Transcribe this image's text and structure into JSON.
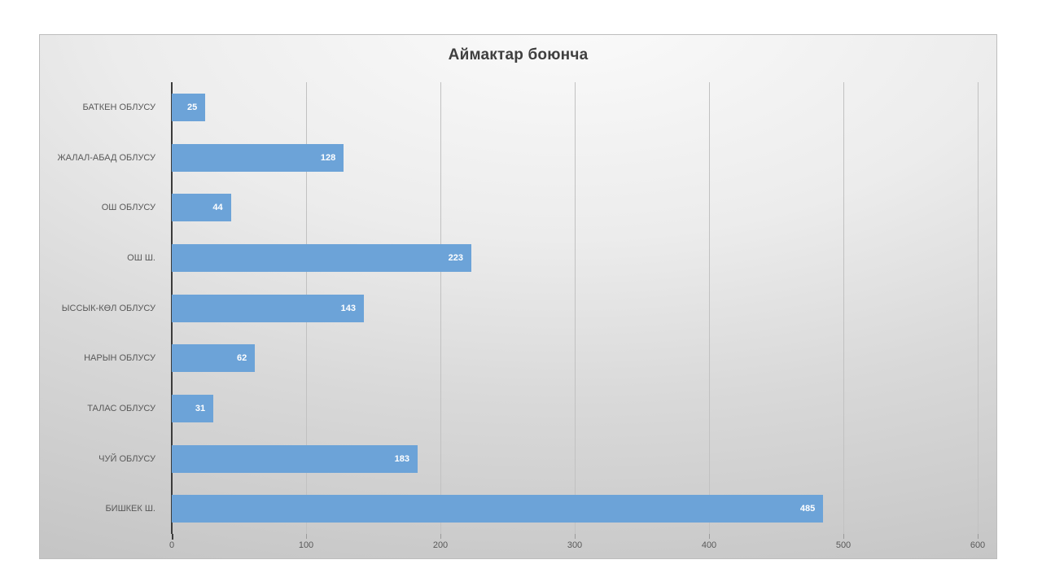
{
  "chart_data": {
    "type": "bar",
    "orientation": "horizontal",
    "title": "Аймактар боюнча",
    "categories": [
      "БАТКЕН ОБЛУСУ",
      "ЖАЛАЛ-АБАД ОБЛУСУ",
      "ОШ ОБЛУСУ",
      "ОШ Ш.",
      "ЫССЫК-КӨЛ ОБЛУСУ",
      "НАРЫН ОБЛУСУ",
      "ТАЛАС ОБЛУСУ",
      "ЧУЙ ОБЛУСУ",
      "БИШКЕК Ш."
    ],
    "values": [
      25,
      128,
      44,
      223,
      143,
      62,
      31,
      183,
      485
    ],
    "x_ticks": [
      0,
      100,
      200,
      300,
      400,
      500,
      600
    ],
    "xlim": [
      0,
      600
    ],
    "xlabel": "",
    "ylabel": "",
    "legend": "none",
    "grid": "vertical-major",
    "data_labels": "inside-end",
    "colors": {
      "bar": "#6CA3D8",
      "data_label": "#ffffff",
      "title": "#3f3f3f",
      "axis_text": "#595959",
      "gridline": "#c1c1c1",
      "axis_line": "#3b3b3b",
      "chart_border": "#bdbdbd"
    }
  }
}
